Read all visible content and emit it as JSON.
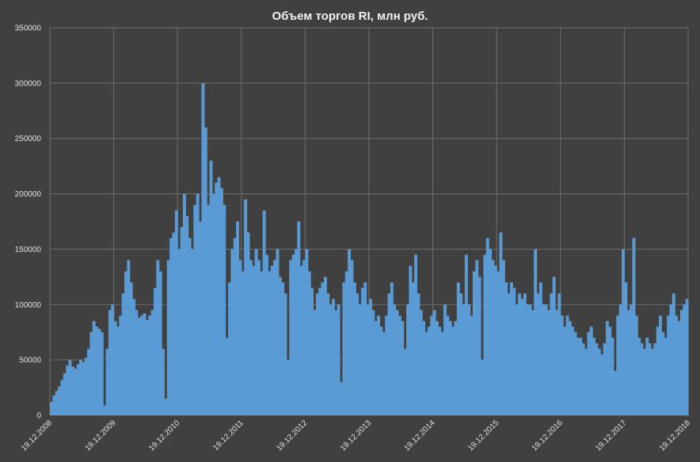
{
  "chart_data": {
    "type": "area",
    "title": "Объем торгов RI, млн руб.",
    "xlabel": "",
    "ylabel": "",
    "ylim": [
      0,
      350000
    ],
    "yticks": [
      "0",
      "50000",
      "100000",
      "150000",
      "200000",
      "250000",
      "300000",
      "350000"
    ],
    "xticks": [
      "19.12.2008",
      "19.12.2009",
      "19.12.2010",
      "19.12.2011",
      "19.12.2012",
      "19.12.2013",
      "19.12.2014",
      "19.12.2015",
      "19.12.2016",
      "19.12.2017",
      "19.12.2018"
    ],
    "grid": true,
    "legend": "none",
    "series_color": "#5b9bd5",
    "series": [
      {
        "x_start": "19.12.2008",
        "x_end": "19.12.2018",
        "values": [
          12000,
          18000,
          22000,
          26000,
          32000,
          38000,
          45000,
          50000,
          44000,
          42000,
          46000,
          50000,
          48000,
          52000,
          60000,
          75000,
          85000,
          80000,
          78000,
          75000,
          9000,
          60000,
          95000,
          100000,
          85000,
          80000,
          90000,
          110000,
          130000,
          140000,
          120000,
          105000,
          95000,
          88000,
          90000,
          92000,
          86000,
          90000,
          95000,
          115000,
          140000,
          130000,
          60000,
          15000,
          140000,
          160000,
          165000,
          185000,
          150000,
          170000,
          200000,
          180000,
          160000,
          150000,
          190000,
          200000,
          175000,
          300000,
          260000,
          190000,
          230000,
          200000,
          210000,
          215000,
          205000,
          190000,
          70000,
          120000,
          150000,
          160000,
          175000,
          140000,
          130000,
          195000,
          165000,
          140000,
          135000,
          150000,
          140000,
          130000,
          185000,
          145000,
          130000,
          135000,
          140000,
          150000,
          125000,
          120000,
          110000,
          50000,
          140000,
          145000,
          150000,
          175000,
          135000,
          140000,
          150000,
          130000,
          115000,
          95000,
          110000,
          115000,
          120000,
          125000,
          110000,
          100000,
          105000,
          95000,
          100000,
          30000,
          120000,
          130000,
          150000,
          140000,
          120000,
          110000,
          100000,
          115000,
          120000,
          100000,
          105000,
          95000,
          85000,
          90000,
          80000,
          75000,
          90000,
          110000,
          120000,
          100000,
          95000,
          90000,
          85000,
          60000,
          100000,
          135000,
          120000,
          145000,
          110000,
          95000,
          85000,
          75000,
          80000,
          90000,
          95000,
          85000,
          80000,
          75000,
          100000,
          90000,
          85000,
          80000,
          85000,
          120000,
          110000,
          100000,
          145000,
          100000,
          90000,
          130000,
          140000,
          125000,
          50000,
          145000,
          160000,
          150000,
          140000,
          135000,
          130000,
          165000,
          140000,
          120000,
          110000,
          120000,
          115000,
          100000,
          110000,
          105000,
          110000,
          100000,
          100000,
          95000,
          150000,
          110000,
          120000,
          100000,
          100000,
          95000,
          110000,
          125000,
          95000,
          110000,
          90000,
          80000,
          90000,
          85000,
          80000,
          75000,
          70000,
          70000,
          65000,
          60000,
          75000,
          80000,
          70000,
          65000,
          60000,
          55000,
          65000,
          85000,
          80000,
          70000,
          40000,
          90000,
          100000,
          150000,
          120000,
          95000,
          100000,
          160000,
          90000,
          70000,
          65000,
          60000,
          70000,
          65000,
          60000,
          65000,
          80000,
          90000,
          75000,
          70000,
          90000,
          100000,
          110000,
          90000,
          85000,
          95000,
          100000,
          105000
        ]
      }
    ]
  }
}
